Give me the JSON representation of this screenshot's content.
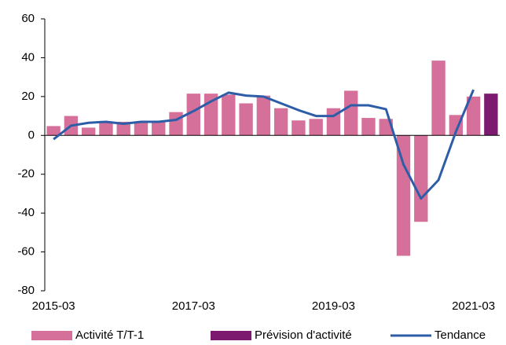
{
  "chart_data": {
    "type": "bar",
    "categories": [
      "2015-03",
      null,
      null,
      null,
      null,
      null,
      null,
      null,
      "2017-03",
      null,
      null,
      null,
      null,
      null,
      null,
      null,
      "2019-03",
      null,
      null,
      null,
      null,
      null,
      null,
      null,
      "2021-03",
      null
    ],
    "series": [
      {
        "name": "Activité T/T-1",
        "type": "bar",
        "color": "#d4709a",
        "values": [
          4.8,
          10,
          4,
          7,
          7,
          7,
          7,
          12,
          21.5,
          21.5,
          21,
          16.5,
          20.5,
          14,
          7.7,
          8.5,
          14,
          23,
          9,
          8.5,
          -62,
          -44.5,
          38.5,
          10.5,
          20,
          null
        ]
      },
      {
        "name": "Prévision d'activité",
        "type": "bar",
        "color": "#7b1a6e",
        "values": [
          null,
          null,
          null,
          null,
          null,
          null,
          null,
          null,
          null,
          null,
          null,
          null,
          null,
          null,
          null,
          null,
          null,
          null,
          null,
          null,
          null,
          null,
          null,
          null,
          null,
          21.5
        ]
      },
      {
        "name": "Tendance",
        "type": "line",
        "color": "#2e5da8",
        "values": [
          -2,
          5,
          6.5,
          7,
          6,
          7,
          7,
          8,
          12.5,
          17.5,
          22,
          20.5,
          20,
          16.5,
          13,
          10,
          10,
          15.5,
          15.5,
          13.5,
          -15,
          -32.5,
          -23,
          2,
          23.5,
          null
        ]
      }
    ],
    "ylim": [
      -80,
      60
    ],
    "yticks": [
      -80,
      -60,
      -40,
      -20,
      0,
      20,
      40,
      60
    ],
    "grid": false,
    "legend": "bottom"
  }
}
